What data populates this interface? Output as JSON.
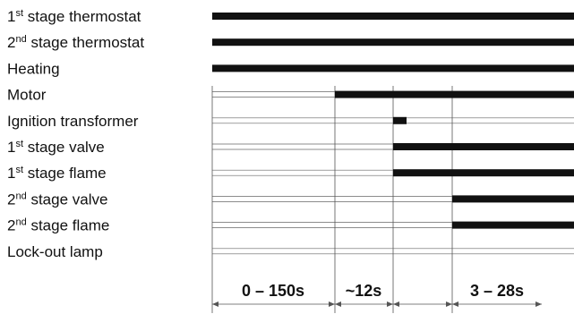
{
  "rows": [
    {
      "key": "t1",
      "label": {
        "pre": "1",
        "sup": "st",
        "post": " stage thermostat"
      },
      "on_from": 0
    },
    {
      "key": "t2",
      "label": {
        "pre": "2",
        "sup": "nd",
        "post": " stage thermostat"
      },
      "on_from": 0
    },
    {
      "key": "heating",
      "label": {
        "pre": "Heating",
        "sup": "",
        "post": ""
      },
      "on_from": 0
    },
    {
      "key": "motor",
      "label": {
        "pre": "Motor",
        "sup": "",
        "post": ""
      },
      "on_from": 1
    },
    {
      "key": "ignition",
      "label": {
        "pre": "Ignition transformer",
        "sup": "",
        "post": ""
      },
      "on_from": 2,
      "on_to": 2.2
    },
    {
      "key": "v1",
      "label": {
        "pre": "1",
        "sup": "st",
        "post": " stage valve"
      },
      "on_from": 2
    },
    {
      "key": "f1",
      "label": {
        "pre": "1",
        "sup": "st",
        "post": " stage flame"
      },
      "on_from": 2
    },
    {
      "key": "v2",
      "label": {
        "pre": "2",
        "sup": "nd",
        "post": " stage valve"
      },
      "on_from": 3
    },
    {
      "key": "f2",
      "label": {
        "pre": "2",
        "sup": "nd",
        "post": " stage flame"
      },
      "on_from": 3
    },
    {
      "key": "lockout",
      "label": {
        "pre": "Lock-out lamp",
        "sup": "",
        "post": ""
      }
    }
  ],
  "intervals": [
    "0 – 150s",
    "~12s",
    "3 – 28s"
  ]
}
